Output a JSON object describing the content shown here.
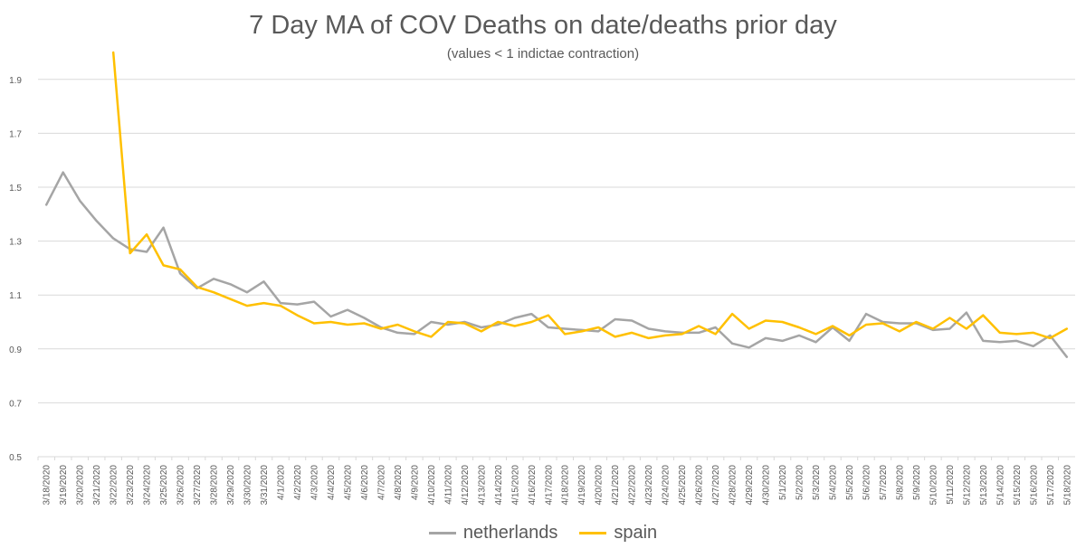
{
  "chart_data": {
    "type": "line",
    "title": "7 Day MA of COV Deaths on date/deaths prior day",
    "subtitle": "(values < 1 indictae contraction)",
    "xlabel": "",
    "ylabel": "",
    "ylim": [
      0.5,
      2.0
    ],
    "yticks": [
      "0.5",
      "0.7",
      "0.9",
      "1.1",
      "1.3",
      "1.5",
      "1.7",
      "1.9"
    ],
    "grid": true,
    "legend_position": "bottom",
    "categories": [
      "3/18/2020",
      "3/19/2020",
      "3/20/2020",
      "3/21/2020",
      "3/22/2020",
      "3/23/2020",
      "3/24/2020",
      "3/25/2020",
      "3/26/2020",
      "3/27/2020",
      "3/28/2020",
      "3/29/2020",
      "3/30/2020",
      "3/31/2020",
      "4/1/2020",
      "4/2/2020",
      "4/3/2020",
      "4/4/2020",
      "4/5/2020",
      "4/6/2020",
      "4/7/2020",
      "4/8/2020",
      "4/9/2020",
      "4/10/2020",
      "4/11/2020",
      "4/12/2020",
      "4/13/2020",
      "4/14/2020",
      "4/15/2020",
      "4/16/2020",
      "4/17/2020",
      "4/18/2020",
      "4/19/2020",
      "4/20/2020",
      "4/21/2020",
      "4/22/2020",
      "4/23/2020",
      "4/24/2020",
      "4/25/2020",
      "4/26/2020",
      "4/27/2020",
      "4/28/2020",
      "4/29/2020",
      "4/30/2020",
      "5/1/2020",
      "5/2/2020",
      "5/3/2020",
      "5/4/2020",
      "5/5/2020",
      "5/6/2020",
      "5/7/2020",
      "5/8/2020",
      "5/9/2020",
      "5/10/2020",
      "5/11/2020",
      "5/12/2020",
      "5/13/2020",
      "5/14/2020",
      "5/15/2020",
      "5/16/2020",
      "5/17/2020",
      "5/18/2020"
    ],
    "series": [
      {
        "name": "netherlands",
        "color": "#a5a5a5",
        "values": [
          1.435,
          1.555,
          1.45,
          1.375,
          1.31,
          1.27,
          1.26,
          1.35,
          1.18,
          1.125,
          1.16,
          1.14,
          1.11,
          1.15,
          1.07,
          1.065,
          1.075,
          1.02,
          1.045,
          1.015,
          0.98,
          0.96,
          0.955,
          1.0,
          0.99,
          1.0,
          0.98,
          0.99,
          1.015,
          1.03,
          0.98,
          0.975,
          0.97,
          0.965,
          1.01,
          1.005,
          0.975,
          0.965,
          0.96,
          0.96,
          0.98,
          0.92,
          0.905,
          0.94,
          0.93,
          0.95,
          0.925,
          0.98,
          0.93,
          1.03,
          1.0,
          0.995,
          0.995,
          0.97,
          0.975,
          1.035,
          0.93,
          0.925,
          0.93,
          0.91,
          0.95,
          0.87
        ]
      },
      {
        "name": "spain",
        "color": "#ffc000",
        "values": [
          null,
          null,
          null,
          null,
          2.0,
          1.255,
          1.325,
          1.21,
          1.195,
          1.13,
          1.11,
          1.085,
          1.06,
          1.07,
          1.06,
          1.025,
          0.995,
          1.0,
          0.99,
          0.995,
          0.975,
          0.99,
          0.965,
          0.945,
          1.0,
          0.995,
          0.965,
          1.0,
          0.985,
          1.0,
          1.025,
          0.955,
          0.965,
          0.98,
          0.945,
          0.96,
          0.94,
          0.95,
          0.955,
          0.985,
          0.955,
          1.03,
          0.975,
          1.005,
          1.0,
          0.98,
          0.955,
          0.985,
          0.95,
          0.99,
          0.995,
          0.965,
          1.0,
          0.975,
          1.015,
          0.975,
          1.025,
          0.96,
          0.955,
          0.96,
          0.94,
          0.975
        ]
      }
    ]
  }
}
